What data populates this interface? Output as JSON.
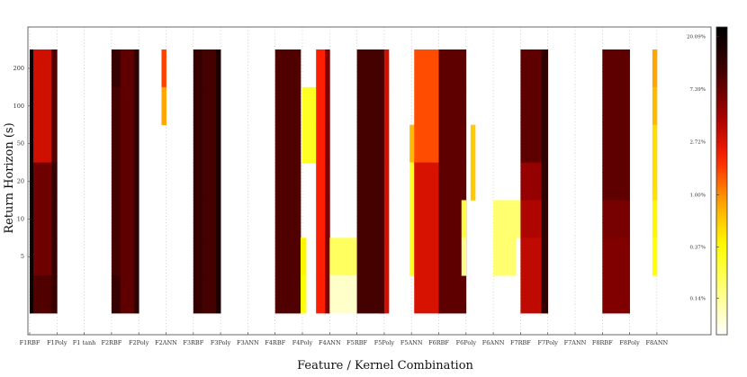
{
  "chart_data": {
    "type": "heatmap",
    "title": "",
    "xlabel": "Feature / Kernel Combination",
    "ylabel": "Return Horizon (s)",
    "y_tick_labels": [
      "5",
      "10",
      "20",
      "50",
      "100",
      "200"
    ],
    "x_tick_labels": [
      "F1RBF",
      "F1Poly",
      "F1 tanh",
      "F2RBF",
      "F2Poly",
      "F2ANN",
      "F3RBF",
      "F3Poly",
      "F3ANN",
      "F4RBF",
      "F4Poly",
      "F4ANN",
      "F5RBF",
      "F5Poly",
      "F5ANN",
      "F6RBF",
      "F6Poly",
      "F6ANN",
      "F7RBF",
      "F7Poly",
      "F7ANN",
      "F8RBF",
      "F8Poly",
      "F8ANN"
    ],
    "colorbar": {
      "scale": "log",
      "tick_labels": [
        "0.14%",
        "0.37%",
        "1.00%",
        "2.72%",
        "7.39%",
        "20.09%"
      ],
      "tick_values": [
        0.14,
        0.37,
        1.0,
        2.72,
        7.39,
        20.09
      ],
      "colors": [
        "#ffffff",
        "#ffff80",
        "#ffff00",
        "#ffa500",
        "#ff2000",
        "#a00000",
        "#400000",
        "#000000"
      ]
    },
    "grid": true,
    "legend": "colorbar-right",
    "series": [
      {
        "bands": [
          {
            "dx": 0.0,
            "w": 0.04,
            "v": [
              20.1,
              20.1,
              20.1,
              20.1,
              20.1,
              20.1,
              20.1
            ]
          },
          {
            "dx": 0.04,
            "w": 0.2,
            "v": [
              3.0,
              3.0,
              3.0,
              7.0,
              7.0,
              7.0,
              9.0
            ]
          },
          {
            "dx": 0.24,
            "w": 0.06,
            "v": [
              9.0,
              9.0,
              9.0,
              12.0,
              12.0,
              12.0,
              12.0
            ]
          }
        ]
      },
      {
        "bands": []
      },
      {
        "bands": []
      },
      {
        "bands": [
          {
            "dx": 0.0,
            "w": 0.1,
            "v": [
              12.0,
              10.0,
              10.0,
              10.0,
              10.0,
              10.0,
              12.0
            ]
          },
          {
            "dx": 0.1,
            "w": 0.15,
            "v": [
              8.0,
              8.0,
              8.0,
              8.0,
              8.0,
              8.0,
              8.0
            ]
          },
          {
            "dx": 0.25,
            "w": 0.05,
            "v": [
              14.0,
              14.0,
              14.0,
              14.0,
              14.0,
              14.0,
              14.0
            ]
          }
        ]
      },
      {
        "bands": []
      },
      {
        "bands": [
          {
            "dx": -0.05,
            "w": 0.05,
            "v": [
              1.6,
              0.85,
              null,
              null,
              null,
              null,
              null
            ]
          }
        ]
      },
      {
        "bands": [
          {
            "dx": 0.0,
            "w": 0.1,
            "v": [
              12.0,
              12.0,
              12.0,
              12.0,
              12.0,
              12.0,
              12.0
            ]
          },
          {
            "dx": 0.1,
            "w": 0.15,
            "v": [
              10.0,
              10.0,
              10.0,
              10.0,
              10.0,
              10.0,
              10.0
            ]
          },
          {
            "dx": 0.25,
            "w": 0.05,
            "v": [
              16.0,
              16.0,
              16.0,
              16.0,
              16.0,
              16.0,
              16.0
            ]
          }
        ]
      },
      {
        "bands": []
      },
      {
        "bands": []
      },
      {
        "bands": [
          {
            "dx": 0.0,
            "w": 0.28,
            "v": [
              9.0,
              9.0,
              9.0,
              9.0,
              9.0,
              9.0,
              9.0
            ]
          }
        ]
      },
      {
        "bands": [
          {
            "dx": -0.02,
            "w": 0.06,
            "v": [
              null,
              null,
              null,
              null,
              null,
              0.4,
              0.35
            ]
          }
        ]
      },
      {
        "bands": [
          {
            "dx": -0.3,
            "w": 0.15,
            "v": [
              null,
              0.3,
              0.3,
              null,
              null,
              null,
              null
            ]
          },
          {
            "dx": -0.15,
            "w": 0.1,
            "v": [
              2.0,
              2.0,
              2.0,
              2.0,
              2.0,
              2.0,
              2.0
            ]
          },
          {
            "dx": -0.05,
            "w": 0.05,
            "v": [
              6.0,
              6.0,
              6.0,
              6.0,
              6.0,
              6.0,
              6.0
            ]
          },
          {
            "dx": 0.0,
            "w": 0.3,
            "v": [
              null,
              null,
              null,
              null,
              null,
              0.2,
              0.1
            ]
          }
        ]
      },
      {
        "bands": [
          {
            "dx": 0.0,
            "w": 0.3,
            "v": [
              10.0,
              10.0,
              10.0,
              10.0,
              10.0,
              10.0,
              10.0
            ]
          }
        ]
      },
      {
        "bands": [
          {
            "dx": -0.05,
            "w": 0.05,
            "v": [
              10.0,
              10.0,
              10.0,
              10.0,
              10.0,
              10.0,
              10.0
            ]
          },
          {
            "dx": 0.0,
            "w": 0.05,
            "v": [
              3.0,
              3.0,
              3.0,
              3.0,
              3.0,
              3.0,
              3.0
            ]
          }
        ]
      },
      {
        "bands": [
          {
            "dx": -0.02,
            "w": 0.05,
            "v": [
              null,
              null,
              0.7,
              0.3,
              0.3,
              0.3,
              null
            ]
          },
          {
            "dx": 0.03,
            "w": 0.3,
            "v": [
              1.5,
              1.5,
              1.5,
              2.8,
              2.8,
              2.8,
              2.8
            ]
          }
        ]
      },
      {
        "bands": [
          {
            "dx": 0.0,
            "w": 0.3,
            "v": [
              8.0,
              8.0,
              8.0,
              8.0,
              8.0,
              8.0,
              8.0
            ]
          }
        ]
      },
      {
        "bands": [
          {
            "dx": -0.05,
            "w": 0.05,
            "v": [
              null,
              null,
              null,
              null,
              0.25,
              0.15,
              null
            ]
          }
        ]
      },
      {
        "bands": [
          {
            "dx": -0.25,
            "w": 0.05,
            "v": [
              null,
              null,
              0.6,
              0.6,
              null,
              null,
              null
            ]
          },
          {
            "dx": 0.0,
            "w": 0.25,
            "v": [
              null,
              null,
              null,
              null,
              0.18,
              0.18,
              null
            ]
          }
        ]
      },
      {
        "bands": [
          {
            "dx": -0.25,
            "w": 0.3,
            "v": [
              null,
              null,
              null,
              null,
              0.18,
              null,
              null
            ]
          },
          {
            "dx": 0.0,
            "w": 0.23,
            "v": [
              8.0,
              8.0,
              8.0,
              5.0,
              4.0,
              3.5,
              3.5
            ]
          },
          {
            "dx": 0.23,
            "w": 0.07,
            "v": [
              13.0,
              13.0,
              13.0,
              13.0,
              13.0,
              13.0,
              13.0
            ]
          }
        ]
      },
      {
        "bands": []
      },
      {
        "bands": []
      },
      {
        "bands": [
          {
            "dx": 0.0,
            "w": 0.3,
            "v": [
              8.0,
              8.0,
              8.0,
              8.0,
              6.5,
              6.0,
              6.0
            ]
          }
        ]
      },
      {
        "bands": []
      },
      {
        "bands": [
          {
            "dx": -0.05,
            "w": 0.05,
            "v": [
              0.85,
              0.7,
              0.5,
              0.5,
              0.4,
              0.35,
              null
            ]
          }
        ]
      }
    ]
  }
}
